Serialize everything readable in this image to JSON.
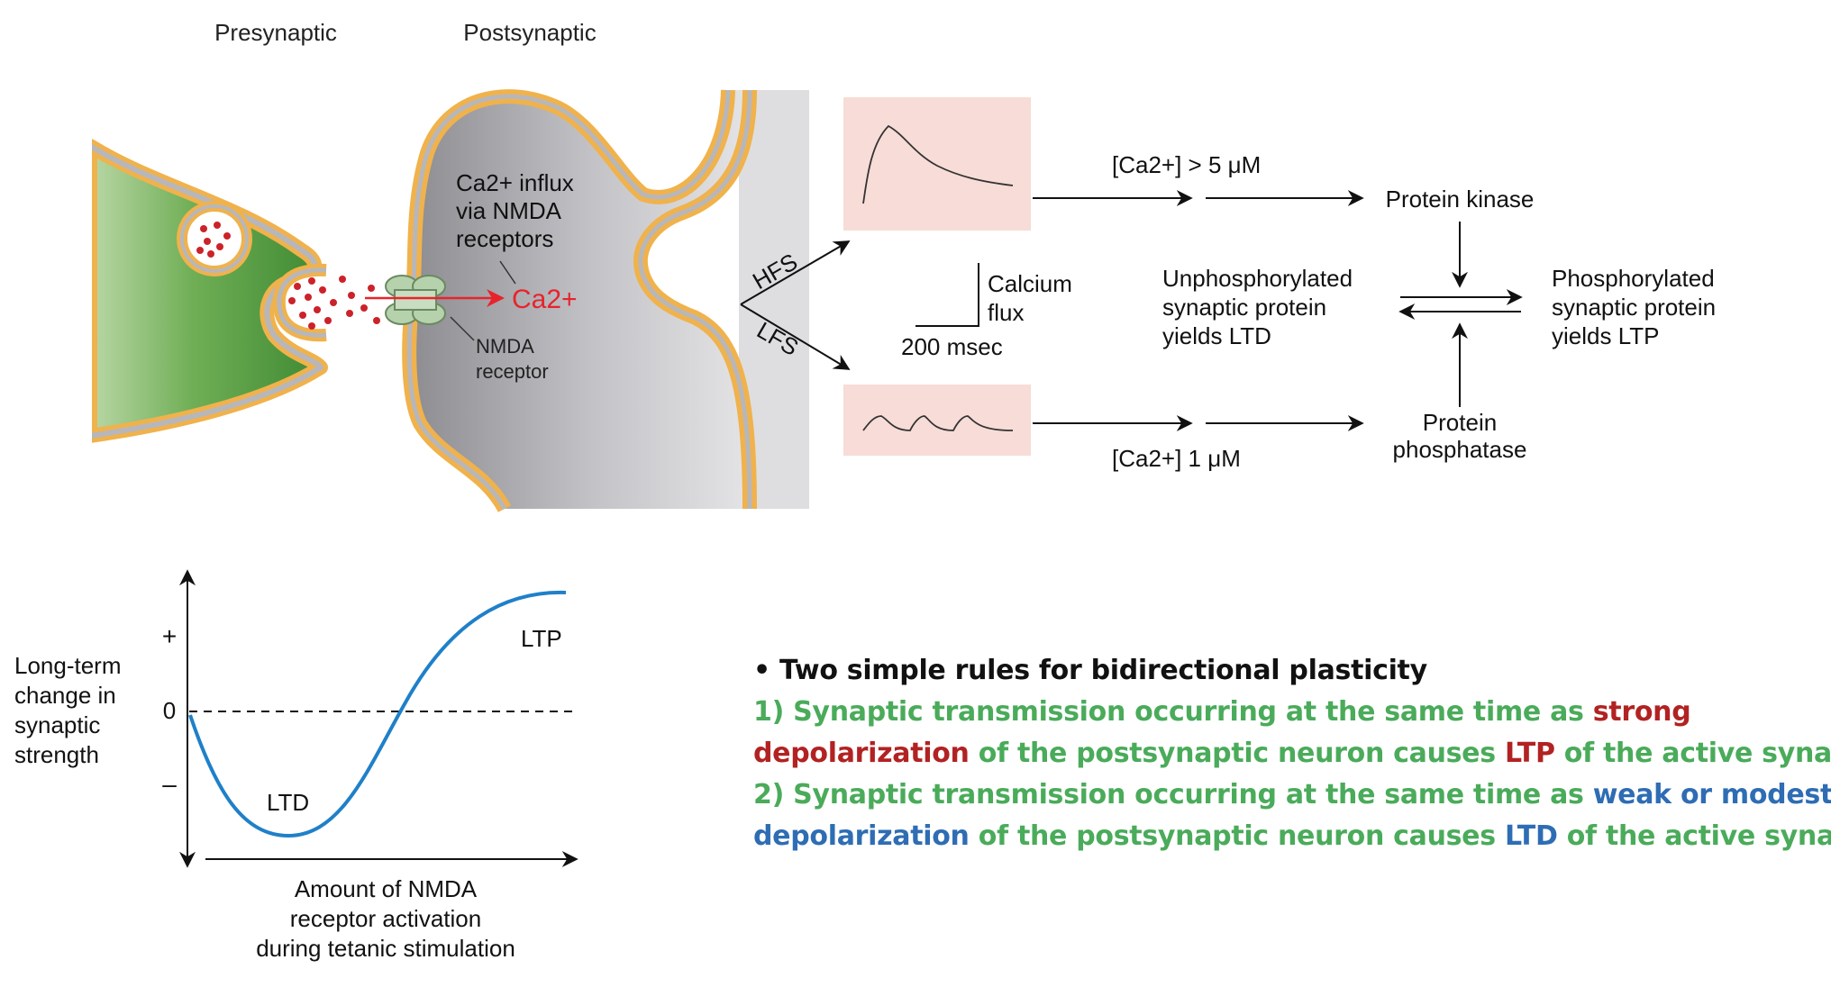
{
  "top": {
    "presynaptic_label": "Presynaptic",
    "postsynaptic_label": "Postsynaptic",
    "influx_label": [
      "Ca2+ influx",
      "via NMDA",
      "receptors"
    ],
    "ca_label": "Ca2+",
    "nmda_label": [
      "NMDA",
      "receptor"
    ],
    "hfs_label": "HFS",
    "lfs_label": "LFS",
    "calcium_flux_label": [
      "Calcium",
      "flux"
    ],
    "scale_label": "200 msec",
    "high_ca": "[Ca2+] > 5 μM",
    "low_ca": "[Ca2+]  1 μM",
    "kinase": "Protein kinase",
    "phosphatase": [
      "Protein",
      "phosphatase"
    ],
    "unphos": [
      "Unphosphorylated",
      "synaptic protein",
      "yields LTD"
    ],
    "phos": [
      "Phosphorylated",
      "synaptic protein",
      "yields LTP"
    ]
  },
  "graph": {
    "ylabel": [
      "Long-term",
      "change in",
      "synaptic",
      "strength"
    ],
    "xlabel": [
      "Amount of NMDA",
      "receptor activation",
      "during tetanic stimulation"
    ],
    "plus": "+",
    "zero": "0",
    "minus": "–",
    "ltd": "LTD",
    "ltp": "LTP",
    "curve_color": "#1f80c8"
  },
  "rules": {
    "heading": "Two simple rules for bidirectional plasticity",
    "bullet": "•",
    "rule1": {
      "a": "1) Synaptic transmission occurring at the same time as ",
      "b": "strong",
      "c": "depolarization",
      "d": " of the postsynaptic neuron causes ",
      "e": "LTP",
      "f": " of the active synapses"
    },
    "rule2": {
      "a": "2) Synaptic transmission occurring at the same time as ",
      "b": "weak or modest",
      "c": "depolarization",
      "d": " of the postsynaptic neuron causes ",
      "e": "LTD",
      "f": " of the active synapses"
    }
  },
  "colors": {
    "presynaptic_fill": "#4f9a3c",
    "postsynaptic_fill": "#9a9a9e",
    "membrane_orange": "#f0b24c",
    "membrane_gray": "#b7b7bb",
    "calcium_red": "#e8232b",
    "trace_box": "#f7dcd7",
    "rule_green": "#4aab5a",
    "rule_red": "#b22222",
    "rule_blue": "#2e6db4"
  }
}
